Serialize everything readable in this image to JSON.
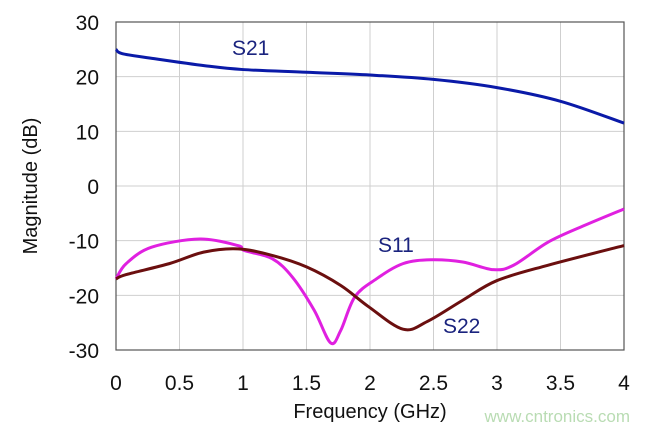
{
  "chart_data": {
    "type": "line",
    "title": "",
    "xlabel": "Frequency (GHz)",
    "ylabel": "Magnitude (dB)",
    "xlim": [
      0,
      4
    ],
    "ylim": [
      -30,
      30
    ],
    "xticks": [
      "0",
      "0.5",
      "1",
      "1.5",
      "2",
      "2.5",
      "3",
      "3.5",
      "4"
    ],
    "yticks": [
      "30",
      "20",
      "10",
      "0",
      "-10",
      "-20",
      "-30"
    ],
    "grid": true,
    "series": [
      {
        "name": "S21",
        "color": "#0a1aa8",
        "x": [
          0,
          0.05,
          0.3,
          0.7,
          1.0,
          1.5,
          2.0,
          2.5,
          3.0,
          3.5,
          4.0
        ],
        "y": [
          25,
          24.2,
          23.3,
          22,
          21.3,
          20.8,
          20.3,
          19.5,
          18,
          15.5,
          11.5
        ]
      },
      {
        "name": "S11",
        "color": "#e020e0",
        "x": [
          0,
          0.08,
          0.28,
          0.66,
          0.96,
          1.01,
          1.23,
          1.39,
          1.56,
          1.69,
          1.77,
          1.88,
          2.05,
          2.26,
          2.48,
          2.73,
          2.97,
          3.13,
          3.4,
          3.68,
          4.0
        ],
        "y": [
          -17,
          -14.2,
          -11.2,
          -9.7,
          -10.9,
          -11.8,
          -13.3,
          -16.7,
          -22.7,
          -28.7,
          -26.4,
          -20.3,
          -17,
          -14.2,
          -13.5,
          -13.9,
          -15.3,
          -14.5,
          -10.3,
          -7.3,
          -4.2
        ]
      },
      {
        "name": "S22",
        "color": "#6b0f0f",
        "x": [
          0,
          0.08,
          0.42,
          0.69,
          0.96,
          1.23,
          1.5,
          1.77,
          1.99,
          2.26,
          2.45,
          2.73,
          3.0,
          3.4,
          4.0
        ],
        "y": [
          -17,
          -16.2,
          -14.2,
          -12.1,
          -11.5,
          -12.7,
          -14.8,
          -18.2,
          -22.1,
          -26.2,
          -24.8,
          -20.9,
          -17.3,
          -14.5,
          -10.9
        ]
      }
    ],
    "annotations": [
      "S21",
      "S11",
      "S22"
    ],
    "legend": "none (inline labels)"
  },
  "watermark": "www.cntronics.com"
}
